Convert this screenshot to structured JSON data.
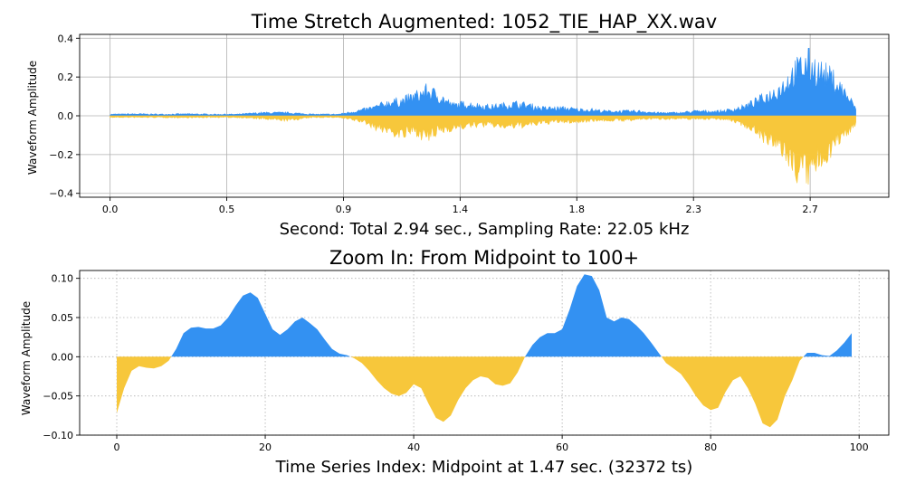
{
  "colors": {
    "positive": "#3391f2",
    "negative": "#f7c73b"
  },
  "chart_data": [
    {
      "type": "area",
      "title": "Time Stretch Augmented: 1052_TIE_HAP_XX.wav",
      "xlabel": "Second: Total 2.94 sec., Sampling Rate: 22.05 kHz",
      "ylabel": "Waveform Amplitude",
      "xlim": [
        -0.12,
        3.07
      ],
      "ylim": [
        -0.42,
        0.42
      ],
      "xticks": [
        0.0,
        0.46,
        0.92,
        1.38,
        1.84,
        2.3,
        2.76
      ],
      "xticklabels": [
        "0.0",
        "0.5",
        "0.9",
        "1.4",
        "1.8",
        "2.3",
        "2.7"
      ],
      "yticks": [
        -0.4,
        -0.2,
        0.0,
        0.2,
        0.4
      ],
      "yticklabels": [
        "−0.4",
        "−0.2",
        "0.0",
        "0.2",
        "0.4"
      ],
      "grid": true,
      "envelope": {
        "x": [
          0.0,
          0.1,
          0.2,
          0.3,
          0.4,
          0.5,
          0.6,
          0.7,
          0.8,
          0.9,
          1.0,
          1.05,
          1.1,
          1.15,
          1.2,
          1.25,
          1.3,
          1.35,
          1.4,
          1.45,
          1.5,
          1.55,
          1.6,
          1.65,
          1.7,
          1.75,
          1.8,
          1.85,
          1.9,
          1.95,
          2.0,
          2.05,
          2.1,
          2.15,
          2.2,
          2.25,
          2.3,
          2.35,
          2.4,
          2.45,
          2.5,
          2.55,
          2.6,
          2.65,
          2.7,
          2.75,
          2.8,
          2.85,
          2.9,
          2.94
        ],
        "upper": [
          0.01,
          0.012,
          0.01,
          0.012,
          0.01,
          0.01,
          0.02,
          0.02,
          0.01,
          0.01,
          0.04,
          0.06,
          0.09,
          0.1,
          0.13,
          0.17,
          0.13,
          0.07,
          0.08,
          0.07,
          0.06,
          0.07,
          0.08,
          0.07,
          0.05,
          0.05,
          0.05,
          0.04,
          0.04,
          0.03,
          0.03,
          0.03,
          0.03,
          0.02,
          0.02,
          0.02,
          0.03,
          0.03,
          0.03,
          0.04,
          0.06,
          0.1,
          0.14,
          0.2,
          0.3,
          0.36,
          0.3,
          0.25,
          0.15,
          0.05
        ],
        "lower": [
          -0.01,
          -0.01,
          -0.01,
          -0.012,
          -0.01,
          -0.01,
          -0.02,
          -0.03,
          -0.01,
          -0.01,
          -0.04,
          -0.08,
          -0.1,
          -0.13,
          -0.1,
          -0.15,
          -0.1,
          -0.08,
          -0.07,
          -0.06,
          -0.06,
          -0.07,
          -0.07,
          -0.06,
          -0.05,
          -0.04,
          -0.04,
          -0.04,
          -0.03,
          -0.03,
          -0.03,
          -0.03,
          -0.02,
          -0.02,
          -0.02,
          -0.02,
          -0.02,
          -0.02,
          -0.02,
          -0.03,
          -0.06,
          -0.1,
          -0.18,
          -0.22,
          -0.35,
          -0.38,
          -0.3,
          -0.2,
          -0.12,
          -0.05
        ]
      }
    },
    {
      "type": "area",
      "title": "Zoom In: From Midpoint to 100+",
      "xlabel": "Time Series Index: Midpoint at 1.47 sec. (32372 ts)",
      "ylabel": "Waveform Amplitude",
      "xlim": [
        -5,
        104
      ],
      "ylim": [
        -0.1,
        0.11
      ],
      "xticks": [
        0,
        20,
        40,
        60,
        80,
        100
      ],
      "xticklabels": [
        "0",
        "20",
        "40",
        "60",
        "80",
        "100"
      ],
      "yticks": [
        -0.1,
        -0.05,
        0.0,
        0.05,
        0.1
      ],
      "yticklabels": [
        "−0.10",
        "−0.05",
        "0.00",
        "0.05",
        "0.10"
      ],
      "grid": true,
      "x": [
        0,
        1,
        2,
        3,
        4,
        5,
        6,
        7,
        8,
        9,
        10,
        11,
        12,
        13,
        14,
        15,
        16,
        17,
        18,
        19,
        20,
        21,
        22,
        23,
        24,
        25,
        26,
        27,
        28,
        29,
        30,
        31,
        32,
        33,
        34,
        35,
        36,
        37,
        38,
        39,
        40,
        41,
        42,
        43,
        44,
        45,
        46,
        47,
        48,
        49,
        50,
        51,
        52,
        53,
        54,
        55,
        56,
        57,
        58,
        59,
        60,
        61,
        62,
        63,
        64,
        65,
        66,
        67,
        68,
        69,
        70,
        71,
        72,
        73,
        74,
        75,
        76,
        77,
        78,
        79,
        80,
        81,
        82,
        83,
        84,
        85,
        86,
        87,
        88,
        89,
        90,
        91,
        92,
        93,
        94,
        95,
        96,
        97,
        98,
        99
      ],
      "y": [
        -0.072,
        -0.04,
        -0.018,
        -0.012,
        -0.014,
        -0.015,
        -0.012,
        -0.005,
        0.01,
        0.03,
        0.037,
        0.038,
        0.036,
        0.036,
        0.04,
        0.05,
        0.065,
        0.078,
        0.082,
        0.075,
        0.055,
        0.035,
        0.028,
        0.035,
        0.045,
        0.05,
        0.043,
        0.035,
        0.022,
        0.01,
        0.004,
        0.002,
        -0.002,
        -0.008,
        -0.018,
        -0.03,
        -0.04,
        -0.047,
        -0.05,
        -0.046,
        -0.035,
        -0.04,
        -0.06,
        -0.078,
        -0.083,
        -0.075,
        -0.055,
        -0.04,
        -0.03,
        -0.025,
        -0.027,
        -0.035,
        -0.037,
        -0.034,
        -0.02,
        0.0,
        0.015,
        0.025,
        0.03,
        0.03,
        0.035,
        0.06,
        0.09,
        0.105,
        0.103,
        0.085,
        0.05,
        0.045,
        0.05,
        0.048,
        0.04,
        0.03,
        0.018,
        0.005,
        -0.008,
        -0.015,
        -0.022,
        -0.035,
        -0.05,
        -0.062,
        -0.068,
        -0.065,
        -0.045,
        -0.03,
        -0.025,
        -0.04,
        -0.06,
        -0.085,
        -0.09,
        -0.08,
        -0.05,
        -0.03,
        -0.005,
        0.005,
        0.005,
        0.002,
        0.001,
        0.008,
        0.018,
        0.03
      ]
    }
  ]
}
